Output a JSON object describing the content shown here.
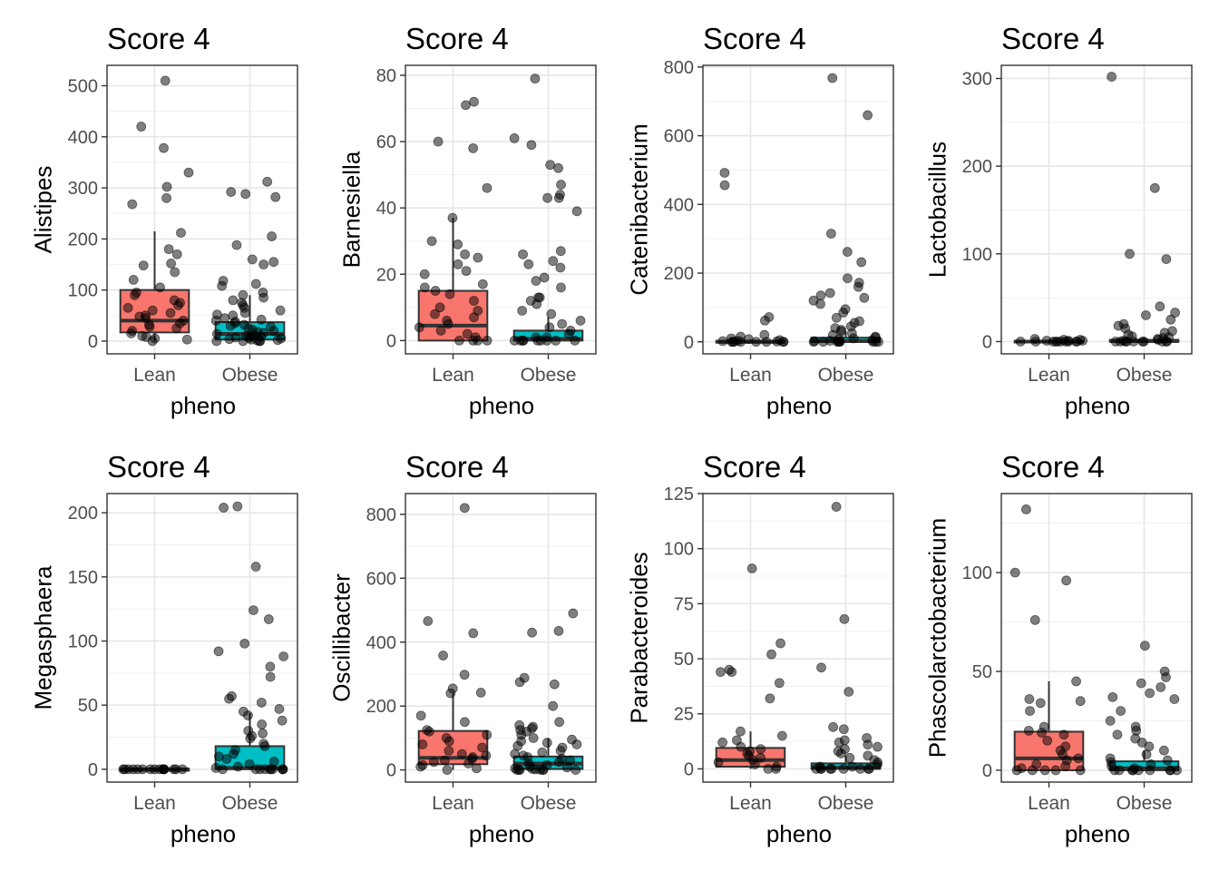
{
  "chart_data": [
    {
      "type": "box",
      "title": "Score 4",
      "xlabel": "pheno",
      "ylabel": "Alistipes",
      "categories": [
        "Lean",
        "Obese"
      ],
      "ylim": [
        -25,
        540
      ],
      "yticks": [
        0,
        100,
        200,
        300,
        400,
        500
      ],
      "boxes": [
        {
          "category": "Lean",
          "q1": 17,
          "median": 40,
          "q3": 100,
          "whisker_low": 0,
          "whisker_high": 215,
          "color": "#F8766D"
        },
        {
          "category": "Obese",
          "q1": 3,
          "median": 14,
          "q3": 37,
          "whisker_low": 0,
          "whisker_high": 90,
          "color": "#00BFC4"
        }
      ],
      "points": [
        {
          "category": "Lean",
          "values": [
            510,
            420,
            378,
            330,
            302,
            280,
            268,
            212,
            180,
            170,
            152,
            148,
            135,
            120,
            105,
            95,
            90,
            80,
            75,
            70,
            65,
            60,
            55,
            50,
            48,
            45,
            40,
            35,
            32,
            28,
            25,
            20,
            15,
            10,
            8,
            5,
            3,
            0
          ]
        },
        {
          "category": "Obese",
          "values": [
            312,
            292,
            288,
            282,
            205,
            188,
            160,
            155,
            150,
            118,
            112,
            108,
            95,
            90,
            85,
            80,
            75,
            70,
            65,
            60,
            55,
            52,
            50,
            45,
            42,
            40,
            38,
            35,
            32,
            30,
            28,
            25,
            22,
            20,
            18,
            16,
            14,
            12,
            10,
            9,
            8,
            7,
            6,
            5,
            4,
            3,
            2,
            1,
            0,
            0,
            0,
            0
          ]
        }
      ]
    },
    {
      "type": "box",
      "title": "Score 4",
      "xlabel": "pheno",
      "ylabel": "Barnesiella",
      "categories": [
        "Lean",
        "Obese"
      ],
      "ylim": [
        -4,
        83
      ],
      "yticks": [
        0,
        20,
        40,
        60,
        80
      ],
      "boxes": [
        {
          "category": "Lean",
          "q1": 0,
          "median": 4.5,
          "q3": 15,
          "whisker_low": 0,
          "whisker_high": 37,
          "color": "#F8766D"
        },
        {
          "category": "Obese",
          "q1": 0,
          "median": 0.5,
          "q3": 3,
          "whisker_low": 0,
          "whisker_high": 7,
          "color": "#00BFC4"
        }
      ],
      "points": [
        {
          "category": "Lean",
          "values": [
            72,
            71,
            60,
            58,
            46,
            37,
            30,
            29,
            26,
            25,
            23,
            21,
            20,
            17,
            16,
            15,
            14,
            12,
            10,
            9,
            8,
            7,
            6,
            5,
            4,
            3,
            2,
            1,
            0,
            0,
            0,
            0
          ]
        },
        {
          "category": "Obese",
          "values": [
            79,
            61,
            59,
            53,
            52,
            47,
            44,
            43,
            43,
            39,
            27,
            26,
            24,
            23,
            22,
            19,
            18,
            16,
            13,
            13,
            12,
            11,
            9,
            8,
            6,
            5,
            4,
            3,
            2,
            1,
            1,
            0,
            0,
            0,
            0,
            0,
            0,
            0,
            0,
            0
          ]
        }
      ]
    },
    {
      "type": "box",
      "title": "Score 4",
      "xlabel": "pheno",
      "ylabel": "Catenibacterium",
      "categories": [
        "Lean",
        "Obese"
      ],
      "ylim": [
        -35,
        805
      ],
      "yticks": [
        0,
        200,
        400,
        600,
        800
      ],
      "boxes": [
        {
          "category": "Lean",
          "q1": 0,
          "median": 0,
          "q3": 3,
          "whisker_low": 0,
          "whisker_high": 8,
          "color": "#F8766D"
        },
        {
          "category": "Obese",
          "q1": 0,
          "median": 2,
          "q3": 12,
          "whisker_low": 0,
          "whisker_high": 30,
          "color": "#00BFC4"
        }
      ],
      "points": [
        {
          "category": "Lean",
          "values": [
            492,
            456,
            72,
            62,
            20,
            15,
            10,
            8,
            5,
            3,
            2,
            1,
            0,
            0,
            0,
            0,
            0,
            0,
            0,
            0
          ]
        },
        {
          "category": "Obese",
          "values": [
            768,
            660,
            315,
            262,
            232,
            185,
            172,
            160,
            142,
            135,
            128,
            120,
            110,
            95,
            85,
            70,
            60,
            55,
            45,
            40,
            35,
            30,
            25,
            20,
            15,
            12,
            10,
            8,
            5,
            3,
            2,
            1,
            0,
            0,
            0,
            0,
            0,
            0,
            0,
            0
          ]
        }
      ]
    },
    {
      "type": "box",
      "title": "Score 4",
      "xlabel": "pheno",
      "ylabel": "Lactobacillus",
      "categories": [
        "Lean",
        "Obese"
      ],
      "ylim": [
        -14,
        315
      ],
      "yticks": [
        0,
        100,
        200,
        300
      ],
      "boxes": [
        {
          "category": "Lean",
          "q1": 0,
          "median": 0,
          "q3": 1,
          "whisker_low": 0,
          "whisker_high": 2,
          "color": "#F8766D"
        },
        {
          "category": "Obese",
          "q1": 0,
          "median": 0.5,
          "q3": 2,
          "whisker_low": 0,
          "whisker_high": 5,
          "color": "#00BFC4"
        }
      ],
      "points": [
        {
          "category": "Lean",
          "values": [
            3,
            2,
            2,
            1,
            1,
            1,
            0,
            0,
            0,
            0,
            0,
            0,
            0,
            0,
            0,
            0
          ]
        },
        {
          "category": "Obese",
          "values": [
            302,
            175,
            100,
            94,
            40,
            33,
            30,
            25,
            20,
            18,
            15,
            12,
            10,
            8,
            6,
            5,
            4,
            3,
            2,
            1,
            0,
            0,
            0,
            0,
            0,
            0,
            0,
            0,
            0,
            0
          ]
        }
      ]
    },
    {
      "type": "box",
      "title": "Score 4",
      "xlabel": "pheno",
      "ylabel": "Megasphaera",
      "categories": [
        "Lean",
        "Obese"
      ],
      "ylim": [
        -10,
        215
      ],
      "yticks": [
        0,
        50,
        100,
        150,
        200
      ],
      "boxes": [
        {
          "category": "Lean",
          "q1": 0,
          "median": 0,
          "q3": 0.3,
          "whisker_low": 0,
          "whisker_high": 0.5,
          "color": "#F8766D"
        },
        {
          "category": "Obese",
          "q1": 0,
          "median": 1,
          "q3": 18,
          "whisker_low": 0,
          "whisker_high": 44,
          "color": "#00BFC4"
        }
      ],
      "points": [
        {
          "category": "Lean",
          "values": [
            0,
            0,
            0,
            0,
            0,
            0,
            0,
            0,
            0,
            0,
            0,
            0,
            0,
            0,
            0,
            0
          ]
        },
        {
          "category": "Obese",
          "values": [
            205,
            204,
            158,
            124,
            117,
            98,
            92,
            88,
            80,
            72,
            57,
            55,
            52,
            47,
            45,
            42,
            38,
            35,
            30,
            28,
            26,
            24,
            20,
            18,
            15,
            12,
            10,
            8,
            6,
            4,
            2,
            1,
            0,
            0,
            0,
            0,
            0,
            0,
            0,
            0,
            0,
            0
          ]
        }
      ]
    },
    {
      "type": "box",
      "title": "Score 4",
      "xlabel": "pheno",
      "ylabel": "Oscillibacter",
      "categories": [
        "Lean",
        "Obese"
      ],
      "ylim": [
        -38,
        865
      ],
      "yticks": [
        0,
        200,
        400,
        600,
        800
      ],
      "boxes": [
        {
          "category": "Lean",
          "q1": 18,
          "median": 38,
          "q3": 122,
          "whisker_low": 0,
          "whisker_high": 240,
          "color": "#F8766D"
        },
        {
          "category": "Obese",
          "q1": 3,
          "median": 20,
          "q3": 42,
          "whisker_low": 0,
          "whisker_high": 100,
          "color": "#00BFC4"
        }
      ],
      "points": [
        {
          "category": "Lean",
          "values": [
            820,
            466,
            428,
            358,
            298,
            255,
            242,
            240,
            170,
            150,
            125,
            120,
            110,
            100,
            90,
            80,
            70,
            60,
            50,
            45,
            40,
            35,
            30,
            25,
            20,
            15,
            10,
            5,
            0
          ]
        },
        {
          "category": "Obese",
          "values": [
            490,
            435,
            430,
            288,
            275,
            268,
            200,
            150,
            140,
            135,
            130,
            125,
            120,
            110,
            100,
            95,
            90,
            85,
            80,
            75,
            70,
            60,
            55,
            50,
            45,
            40,
            35,
            30,
            25,
            20,
            15,
            10,
            8,
            5,
            3,
            2,
            1,
            0,
            0,
            0,
            0,
            0,
            0
          ]
        }
      ]
    },
    {
      "type": "box",
      "title": "Score 4",
      "xlabel": "pheno",
      "ylabel": "Parabacteroides",
      "categories": [
        "Lean",
        "Obese"
      ],
      "ylim": [
        -6,
        125
      ],
      "yticks": [
        0,
        25,
        50,
        75,
        100,
        125
      ],
      "boxes": [
        {
          "category": "Lean",
          "q1": 1,
          "median": 4,
          "q3": 9.5,
          "whisker_low": 0,
          "whisker_high": 17,
          "color": "#F8766D"
        },
        {
          "category": "Obese",
          "q1": 0,
          "median": 0.5,
          "q3": 2.5,
          "whisker_low": 0,
          "whisker_high": 6,
          "color": "#00BFC4"
        }
      ],
      "points": [
        {
          "category": "Lean",
          "values": [
            91,
            57,
            52,
            45,
            44,
            44,
            39,
            32,
            17,
            15,
            13,
            12,
            10,
            9,
            8,
            7,
            6,
            5,
            4,
            3,
            2,
            1,
            0,
            0
          ]
        },
        {
          "category": "Obese",
          "values": [
            119,
            68,
            46,
            35,
            19,
            18,
            14,
            13,
            12,
            11,
            10,
            9,
            8,
            7,
            6,
            5,
            4,
            3,
            2,
            1,
            1,
            0,
            0,
            0,
            0,
            0,
            0,
            0,
            0,
            0
          ]
        }
      ]
    },
    {
      "type": "box",
      "title": "Score 4",
      "xlabel": "pheno",
      "ylabel": "Phascolarctobacterium",
      "categories": [
        "Lean",
        "Obese"
      ],
      "ylim": [
        -6,
        140
      ],
      "yticks": [
        0,
        50,
        100
      ],
      "boxes": [
        {
          "category": "Lean",
          "q1": 0,
          "median": 6,
          "q3": 19.5,
          "whisker_low": 0,
          "whisker_high": 45,
          "color": "#F8766D"
        },
        {
          "category": "Obese",
          "q1": 0,
          "median": 1,
          "q3": 4.5,
          "whisker_low": 0,
          "whisker_high": 10,
          "color": "#00BFC4"
        }
      ],
      "points": [
        {
          "category": "Lean",
          "values": [
            132,
            100,
            96,
            76,
            45,
            36,
            35,
            34,
            30,
            22,
            20,
            19,
            18,
            15,
            12,
            10,
            8,
            6,
            5,
            3,
            2,
            1,
            0,
            0,
            0,
            0,
            0
          ]
        },
        {
          "category": "Obese",
          "values": [
            63,
            50,
            47,
            44,
            42,
            39,
            37,
            36,
            30,
            25,
            22,
            20,
            18,
            16,
            14,
            12,
            10,
            8,
            6,
            5,
            4,
            3,
            2,
            1,
            0,
            0,
            0,
            0,
            0,
            0,
            0,
            0,
            0
          ]
        }
      ]
    }
  ]
}
